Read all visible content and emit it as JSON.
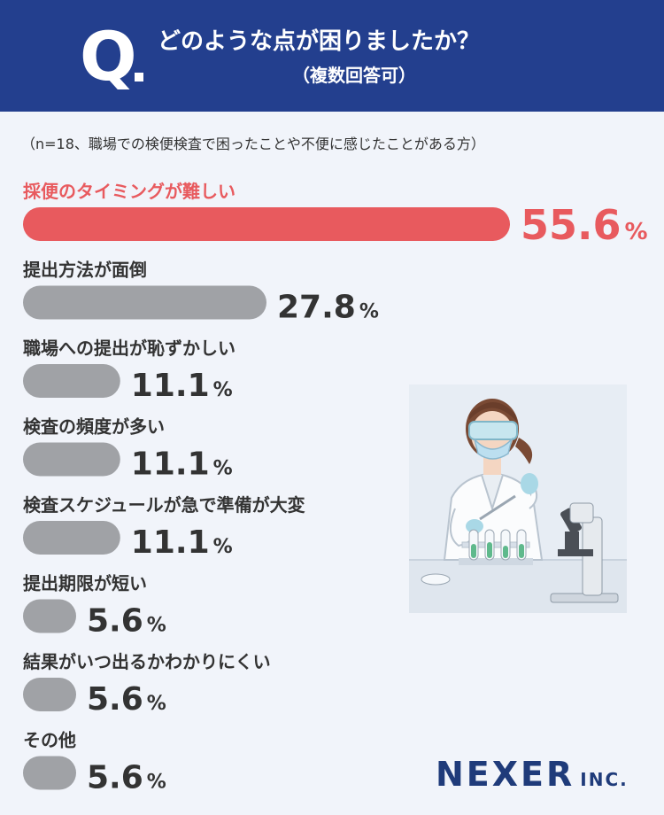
{
  "header": {
    "q_label": "Q",
    "title": "どのような点が困りましたか？",
    "subtitle": "（複数回答可）"
  },
  "note": "（n=18、職場での検便検査で困ったことや不便に感じたことがある方）",
  "chart_data": {
    "type": "bar",
    "orientation": "horizontal",
    "title": "",
    "xlabel": "",
    "ylabel": "",
    "categories": [
      "採便のタイミングが難しい",
      "提出方法が面倒",
      "職場への提出が恥ずかしい",
      "検査の頻度が多い",
      "検査スケジュールが急で準備が大変",
      "提出期限が短い",
      "結果がいつ出るかわかりにくい",
      "その他"
    ],
    "values": [
      55.6,
      27.8,
      11.1,
      11.1,
      11.1,
      5.6,
      5.6,
      5.6
    ],
    "value_labels": [
      "55.6",
      "27.8",
      "11.1",
      "11.1",
      "11.1",
      "5.6",
      "5.6",
      "5.6"
    ],
    "unit": "%",
    "xlim": [
      0,
      55.6
    ],
    "grid": false,
    "highlight_color": "#e85a5e",
    "bar_color": "#a0a2a6"
  },
  "illustration": {
    "icon": "lab-scientist-with-microscope-icon"
  },
  "brand": {
    "name": "NEXER",
    "suffix": "INC."
  },
  "colors": {
    "header_bg": "#233f8e",
    "page_bg": "#f1f4fa",
    "brand": "#1f3b7a"
  }
}
